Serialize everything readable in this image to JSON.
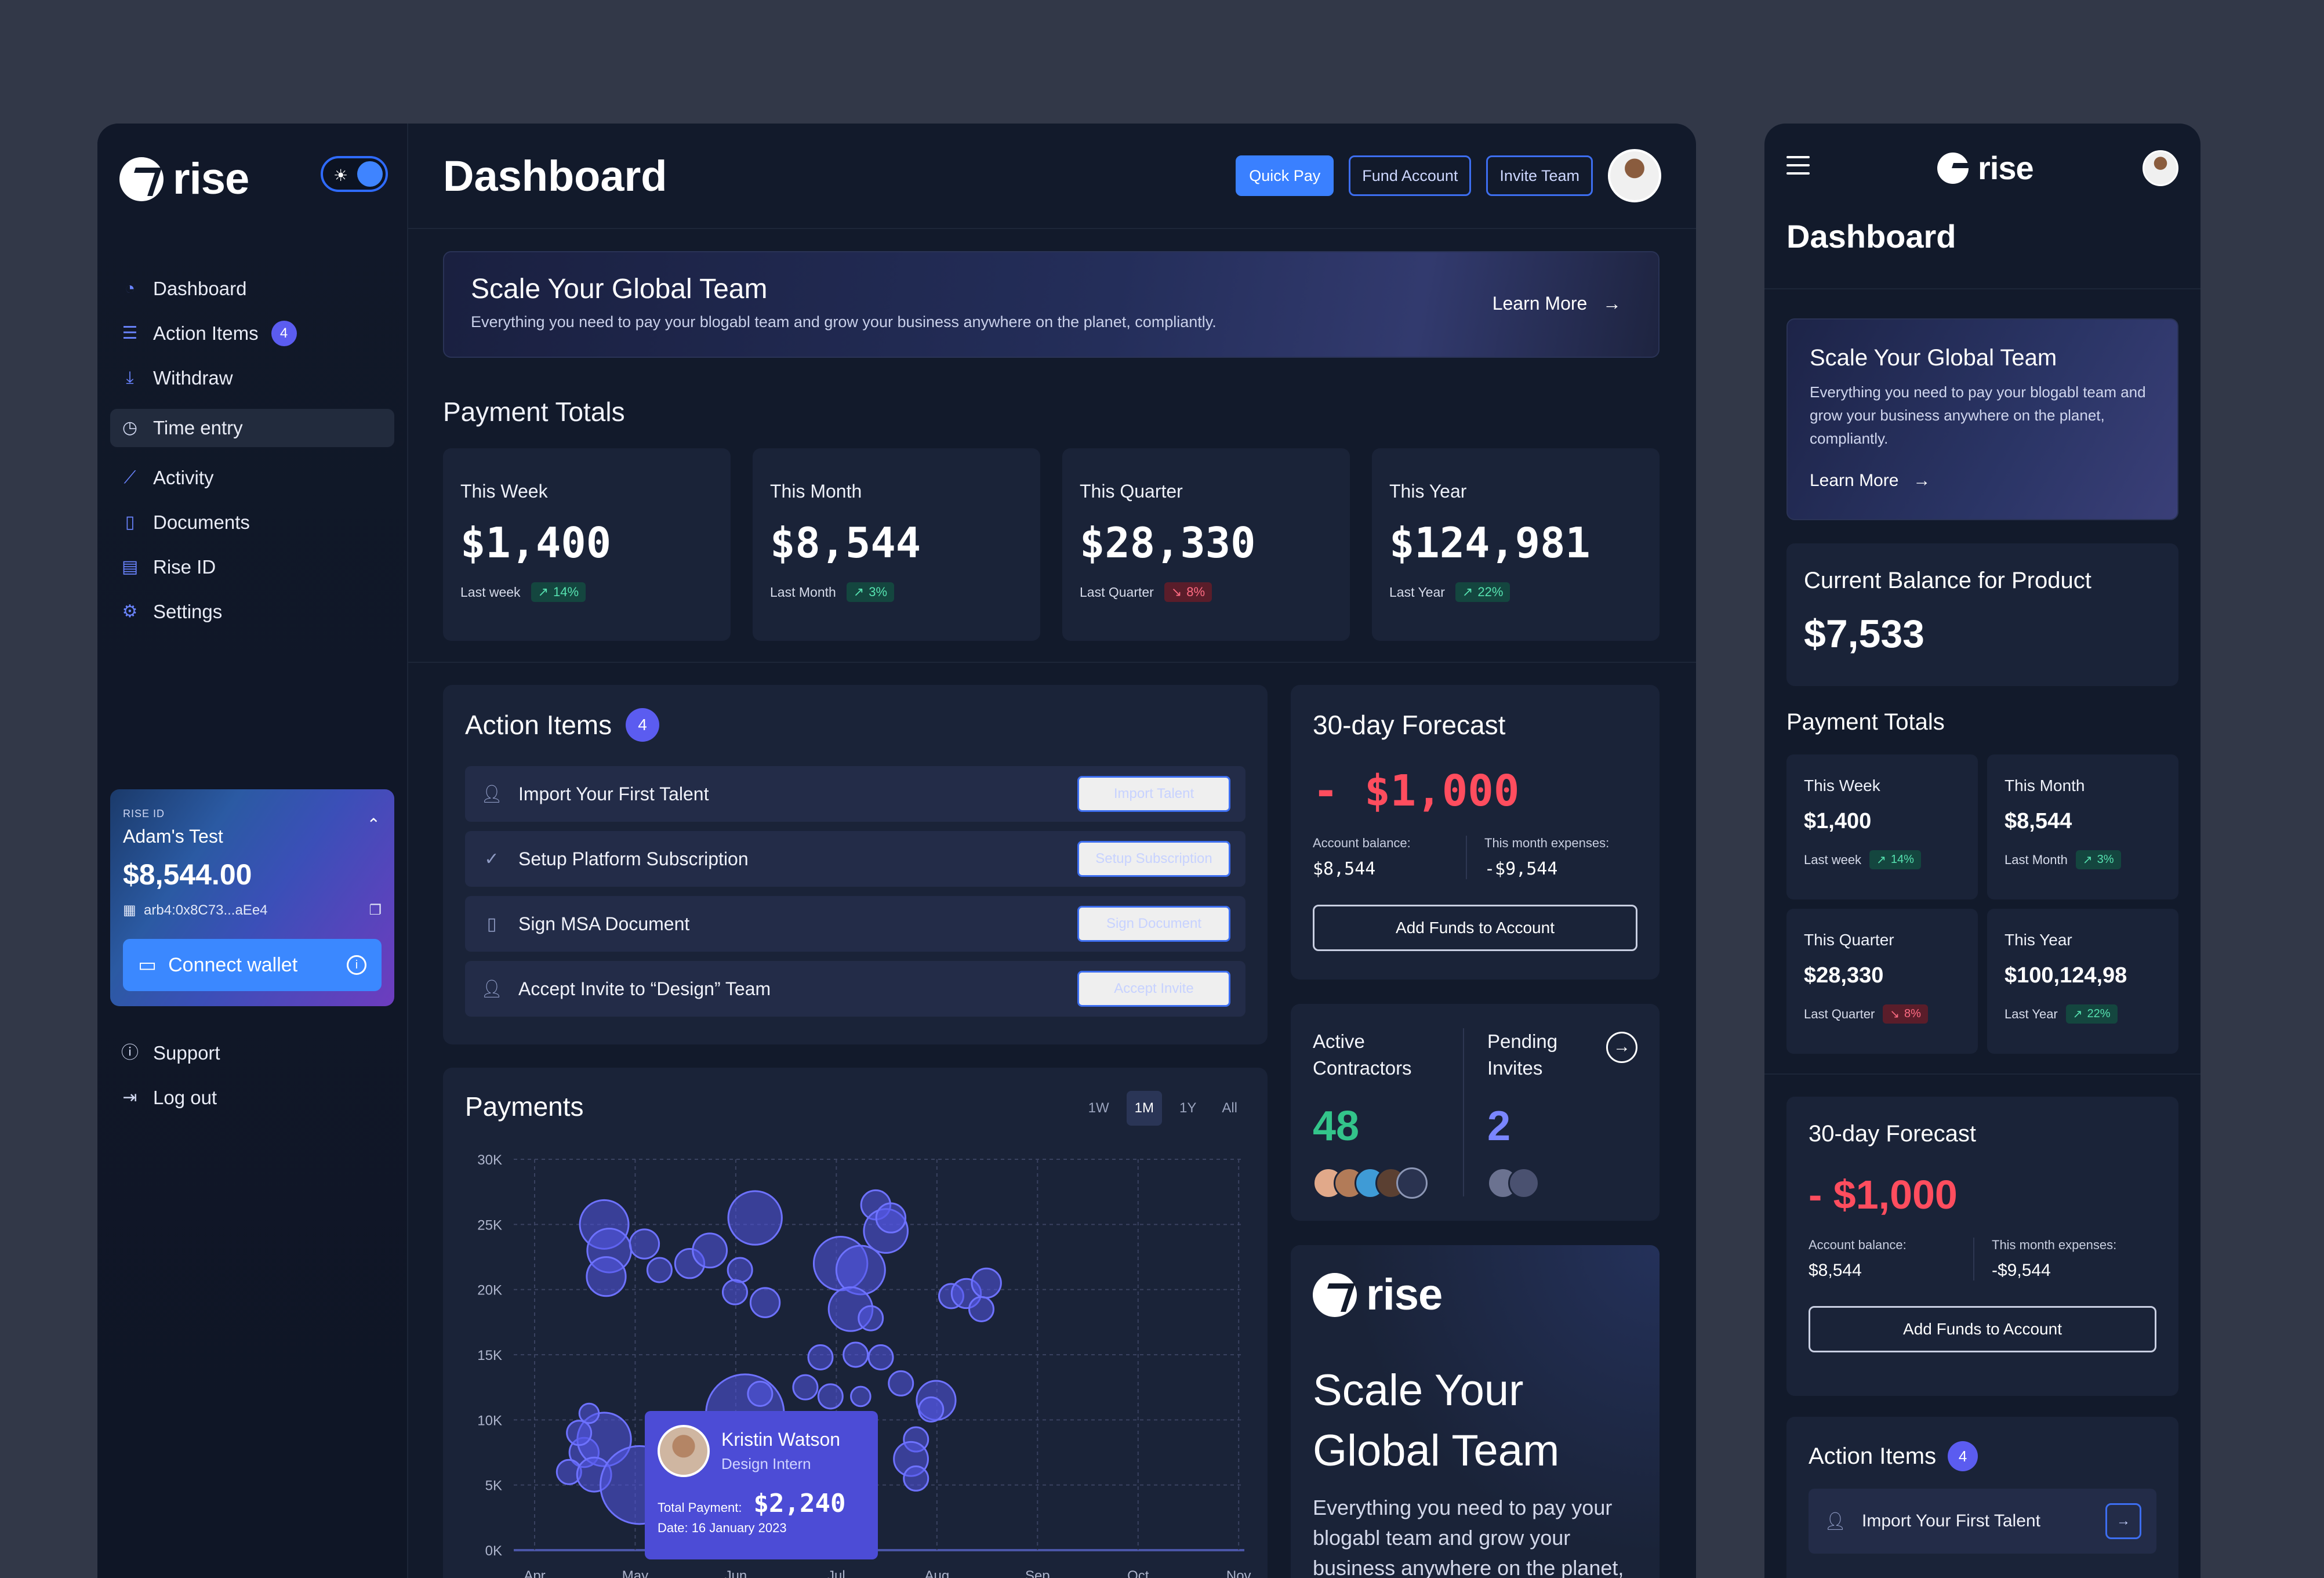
{
  "brand": {
    "name": "rise"
  },
  "sidebar": {
    "items": [
      {
        "label": "Dashboard",
        "icon": "dashboard-icon"
      },
      {
        "label": "Action Items",
        "icon": "list-icon",
        "badge": "4"
      },
      {
        "label": "Withdraw",
        "icon": "withdraw-icon"
      },
      {
        "label": "Time entry",
        "icon": "clock-icon",
        "active": true
      },
      {
        "label": "Activity",
        "icon": "activity-chart-icon"
      },
      {
        "label": "Documents",
        "icon": "document-icon"
      },
      {
        "label": "Rise ID",
        "icon": "id-badge-icon"
      },
      {
        "label": "Settings",
        "icon": "gear-icon"
      }
    ],
    "wallet": {
      "label": "RISE ID",
      "name": "Adam's Test",
      "balance": "$8,544.00",
      "address": "arb4:0x8C73...aEe4",
      "connect_label": "Connect wallet"
    },
    "bottom": [
      {
        "label": "Support",
        "icon": "support-icon"
      },
      {
        "label": "Log out",
        "icon": "logout-icon"
      }
    ]
  },
  "header": {
    "title": "Dashboard",
    "quick_pay": "Quick Pay",
    "fund_account": "Fund Account",
    "invite_team": "Invite Team"
  },
  "hero": {
    "title": "Scale Your Global Team",
    "text": "Everything you need to pay your blogabl team and grow your business anywhere on the planet, compliantly.",
    "learn_more": "Learn More"
  },
  "payment_totals": {
    "title": "Payment Totals",
    "cards": [
      {
        "title": "This Week",
        "value": "$1,400",
        "foot": "Last week",
        "change": "14%",
        "dir": "up"
      },
      {
        "title": "This Month",
        "value": "$8,544",
        "foot": "Last Month",
        "change": "3%",
        "dir": "up"
      },
      {
        "title": "This Quarter",
        "value": "$28,330",
        "foot": "Last Quarter",
        "change": "8%",
        "dir": "down"
      },
      {
        "title": "This Year",
        "value": "$124,981",
        "foot": "Last Year",
        "change": "22%",
        "dir": "up"
      }
    ]
  },
  "action_items": {
    "title": "Action Items",
    "count": "4",
    "rows": [
      {
        "label": "Import Your First Talent",
        "button": "Import Talent",
        "icon": "user-add-icon"
      },
      {
        "label": "Setup Platform Subscription",
        "button": "Setup Subscription",
        "icon": "check-circle-icon"
      },
      {
        "label": "Sign MSA Document",
        "button": "Sign Document",
        "icon": "document-icon"
      },
      {
        "label": "Accept Invite to “Design” Team",
        "button": "Accept Invite",
        "icon": "user-add-icon"
      }
    ]
  },
  "forecast": {
    "title": "30-day Forecast",
    "value": "- $1,000",
    "account_balance_label": "Account balance:",
    "account_balance": "$8,544",
    "expenses_label": "This month expenses:",
    "expenses": "-$9,544",
    "button": "Add Funds to Account"
  },
  "contractors": {
    "active_label": "Active Contractors",
    "active_count": "48",
    "pending_label": "Pending Invites",
    "pending_count": "2"
  },
  "promo": {
    "title": "Scale Your Global Team",
    "text": "Everything you need to pay your blogabl team and grow your business anywhere on the planet, compliantly."
  },
  "payments": {
    "title": "Payments",
    "ranges": [
      "1W",
      "1M",
      "1Y",
      "All"
    ],
    "selected_range": "1M",
    "tooltip": {
      "name": "Kristin Watson",
      "role": "Design Intern",
      "total_label": "Total Payment:",
      "total": "$2,240",
      "date": "Date: 16 January 2023"
    }
  },
  "chart_data": {
    "type": "scatter",
    "title": "Payments",
    "xlabel": "",
    "ylabel": "",
    "x_categories": [
      "Apr",
      "May",
      "Jun",
      "Jul",
      "Aug",
      "Sep",
      "Oct",
      "Nov"
    ],
    "y_ticks": [
      "0K",
      "5K",
      "10K",
      "15K",
      "20K",
      "25K",
      "30K"
    ],
    "ylim": [
      0,
      30000
    ],
    "grid": true,
    "series": [
      {
        "points": [
          {
            "x": 1.7,
            "y": 25000,
            "r": 10
          },
          {
            "x": 1.75,
            "y": 23000,
            "r": 9
          },
          {
            "x": 1.72,
            "y": 21000,
            "r": 8
          },
          {
            "x": 2.1,
            "y": 23500,
            "r": 6
          },
          {
            "x": 2.25,
            "y": 21500,
            "r": 5
          },
          {
            "x": 2.55,
            "y": 22000,
            "r": 6
          },
          {
            "x": 2.75,
            "y": 23000,
            "r": 7
          },
          {
            "x": 3.2,
            "y": 25500,
            "r": 11
          },
          {
            "x": 3.05,
            "y": 21500,
            "r": 5
          },
          {
            "x": 3.0,
            "y": 19800,
            "r": 5
          },
          {
            "x": 3.3,
            "y": 19000,
            "r": 6
          },
          {
            "x": 4.05,
            "y": 22000,
            "r": 11
          },
          {
            "x": 4.25,
            "y": 21500,
            "r": 10
          },
          {
            "x": 4.4,
            "y": 26500,
            "r": 6
          },
          {
            "x": 4.5,
            "y": 24500,
            "r": 9
          },
          {
            "x": 4.55,
            "y": 25500,
            "r": 6
          },
          {
            "x": 4.15,
            "y": 18500,
            "r": 9
          },
          {
            "x": 4.35,
            "y": 17800,
            "r": 5
          },
          {
            "x": 4.2,
            "y": 15000,
            "r": 5
          },
          {
            "x": 4.45,
            "y": 14800,
            "r": 5
          },
          {
            "x": 3.85,
            "y": 14800,
            "r": 5
          },
          {
            "x": 3.7,
            "y": 12500,
            "r": 5
          },
          {
            "x": 3.95,
            "y": 11800,
            "r": 5
          },
          {
            "x": 4.25,
            "y": 11800,
            "r": 4
          },
          {
            "x": 4.65,
            "y": 12800,
            "r": 5
          },
          {
            "x": 5.0,
            "y": 11500,
            "r": 8
          },
          {
            "x": 4.95,
            "y": 10800,
            "r": 5
          },
          {
            "x": 5.15,
            "y": 19500,
            "r": 5
          },
          {
            "x": 5.3,
            "y": 19700,
            "r": 6
          },
          {
            "x": 5.5,
            "y": 20500,
            "r": 6
          },
          {
            "x": 5.45,
            "y": 18500,
            "r": 5
          },
          {
            "x": 3.95,
            "y": 8500,
            "r": 4
          },
          {
            "x": 4.8,
            "y": 8500,
            "r": 5
          },
          {
            "x": 4.75,
            "y": 7000,
            "r": 7
          },
          {
            "x": 4.8,
            "y": 5500,
            "r": 5
          },
          {
            "x": 3.1,
            "y": 10500,
            "r": 16
          },
          {
            "x": 3.25,
            "y": 12000,
            "r": 5
          },
          {
            "x": 1.5,
            "y": 7500,
            "r": 6
          },
          {
            "x": 1.7,
            "y": 8500,
            "r": 11
          },
          {
            "x": 1.35,
            "y": 6000,
            "r": 5
          },
          {
            "x": 1.45,
            "y": 9000,
            "r": 5
          },
          {
            "x": 1.55,
            "y": 10500,
            "r": 4
          },
          {
            "x": 1.6,
            "y": 5800,
            "r": 7
          },
          {
            "x": 2.05,
            "y": 5000,
            "r": 16
          },
          {
            "x": 2.25,
            "y": 6800,
            "r": 5
          }
        ]
      }
    ]
  }
}
